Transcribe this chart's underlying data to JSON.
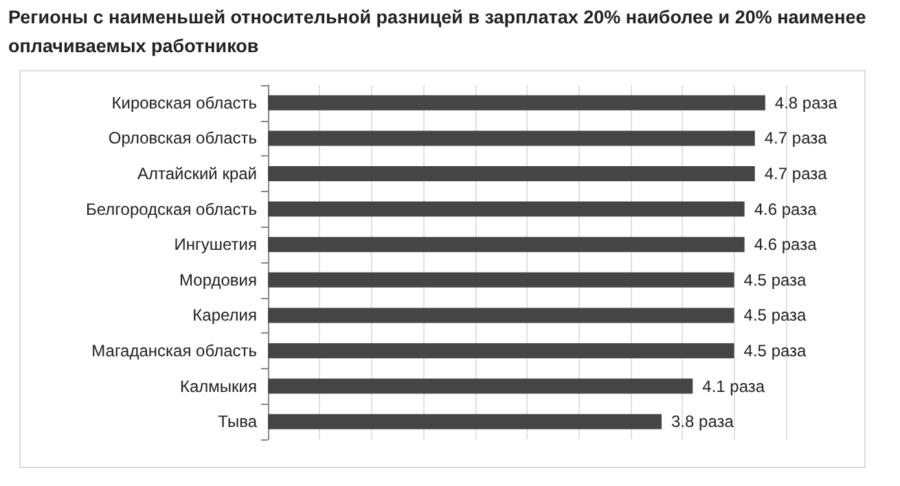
{
  "chart_data": {
    "type": "bar",
    "orientation": "horizontal",
    "title": "Регионы с наименьшей относительной разницей в зарплатах 20% наиболее и 20% наименее оплачиваемых работников",
    "categories": [
      "Кировская область",
      "Орловская область",
      "Алтайский край",
      "Белгородская область",
      "Ингушетия",
      "Мордовия",
      "Карелия",
      "Магаданская область",
      "Калмыкия",
      "Тыва"
    ],
    "values": [
      4.8,
      4.7,
      4.7,
      4.6,
      4.6,
      4.5,
      4.5,
      4.5,
      4.1,
      3.8
    ],
    "value_labels": [
      "4.8 раза",
      "4.7 раза",
      "4.7 раза",
      "4.6 раза",
      "4.6 раза",
      "4.5 раза",
      "4.5 раза",
      "4.5 раза",
      "4.1 раза",
      "3.8 раза"
    ],
    "color": "#454545",
    "xlim": [
      0,
      5
    ],
    "xticks": [
      {
        "value": 0,
        "label": null
      },
      {
        "value": 0.5,
        "label": null
      },
      {
        "value": 1,
        "label": null
      },
      {
        "value": 1.5,
        "label": null
      },
      {
        "value": 2,
        "label": null
      },
      {
        "value": 2.5,
        "label": null
      },
      {
        "value": 3,
        "label": null
      },
      {
        "value": 3.5,
        "label": null
      },
      {
        "value": 4,
        "label": null
      },
      {
        "value": 4.5,
        "label": null
      },
      {
        "value": 5,
        "label": null
      }
    ],
    "grid": "x",
    "tick_labels": "y"
  }
}
